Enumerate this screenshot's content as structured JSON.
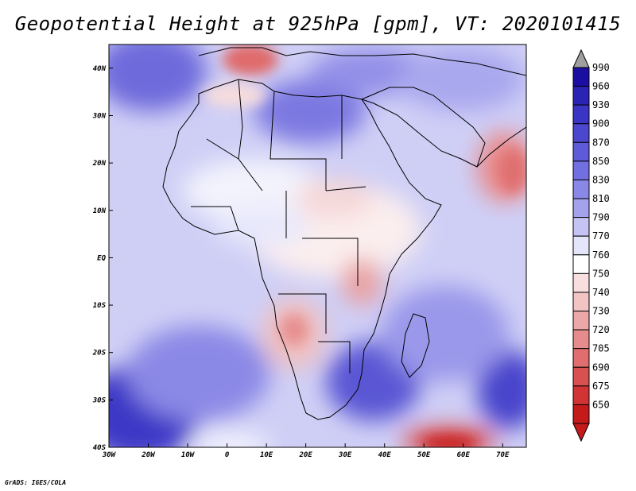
{
  "title": "Geopotential Height at 925hPa [gpm], VT: 2020101415",
  "credit": "GrADS: IGES/COLA",
  "map": {
    "lon_range": [
      -30,
      76
    ],
    "lat_range": [
      -40,
      45
    ],
    "lon_ticks": [
      "30W",
      "20W",
      "10W",
      "0",
      "10E",
      "20E",
      "30E",
      "40E",
      "50E",
      "60E",
      "70E"
    ],
    "lon_values": [
      -30,
      -20,
      -10,
      0,
      10,
      20,
      30,
      40,
      50,
      60,
      70
    ],
    "lat_ticks": [
      "40N",
      "30N",
      "20N",
      "10N",
      "EQ",
      "10S",
      "20S",
      "30S",
      "40S"
    ],
    "lat_values": [
      40,
      30,
      20,
      10,
      0,
      -10,
      -20,
      -30,
      -40
    ]
  },
  "colorbar": {
    "labels": [
      "990",
      "960",
      "930",
      "900",
      "870",
      "850",
      "830",
      "810",
      "790",
      "770",
      "760",
      "750",
      "740",
      "730",
      "720",
      "705",
      "690",
      "675",
      "650"
    ],
    "colors": [
      "#1a0fa0",
      "#2a23b4",
      "#3a35c4",
      "#4c47cf",
      "#5e5bd8",
      "#7270e0",
      "#8a88e6",
      "#a4a2ec",
      "#c4c3f3",
      "#e4e4fa",
      "#ffffff",
      "#f8dede",
      "#f2c4c4",
      "#eca8a8",
      "#e68c8c",
      "#e06e6e",
      "#d95050",
      "#d03434",
      "#c41a1a"
    ],
    "top_arrow_color": "#a0a0a0",
    "bottom_arrow_color": "#c41a1a"
  }
}
